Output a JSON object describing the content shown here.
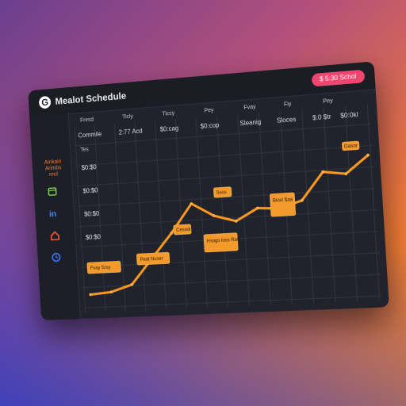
{
  "app": {
    "logo_letter": "G",
    "title": "Mealot Schedule"
  },
  "header": {
    "action_button": "$ 5:30 Schol"
  },
  "sidebar": {
    "brand_text": "Ainkain Arimbs",
    "brand_sub": "reul",
    "icons": [
      {
        "name": "calendar-icon",
        "color": "#7fd04a"
      },
      {
        "name": "linkedin-icon",
        "color": "#3c8bff"
      },
      {
        "name": "home-icon",
        "color": "#ff5b3a"
      },
      {
        "name": "clock-icon",
        "color": "#3c7dff"
      }
    ]
  },
  "table": {
    "column_headers": [
      "Fresd",
      "Ticly",
      "Ticcy",
      "Pey",
      "Fvay",
      "Fiy",
      "Pey"
    ],
    "row_header": [
      "Commile",
      "2:77 Acd",
      "$0:cag",
      "$0:cop",
      "Sleanig",
      "Sloces",
      "$:0 $tr",
      "$0:0kl"
    ],
    "sub_label": "Tes",
    "y_labels": [
      "$0:$0",
      "$0:$0",
      "$0:$0",
      "$0:$0"
    ]
  },
  "chart_data": {
    "type": "line",
    "x": [
      1,
      2,
      3,
      4,
      5,
      6,
      7,
      8,
      9,
      10,
      11,
      12,
      13,
      14
    ],
    "series": [
      {
        "values": [
          8,
          9,
          13,
          28,
          43,
          60,
          52,
          48,
          55,
          54,
          58,
          74,
          72,
          82
        ]
      }
    ],
    "ylim": [
      0,
      100
    ],
    "grid": true,
    "annotations": [
      "Fvay Srsy",
      "Peat Nuser",
      "Cesodi",
      "Ssss",
      "Hsogs loss Rats",
      "Bicel $aa",
      "Gasor"
    ]
  }
}
